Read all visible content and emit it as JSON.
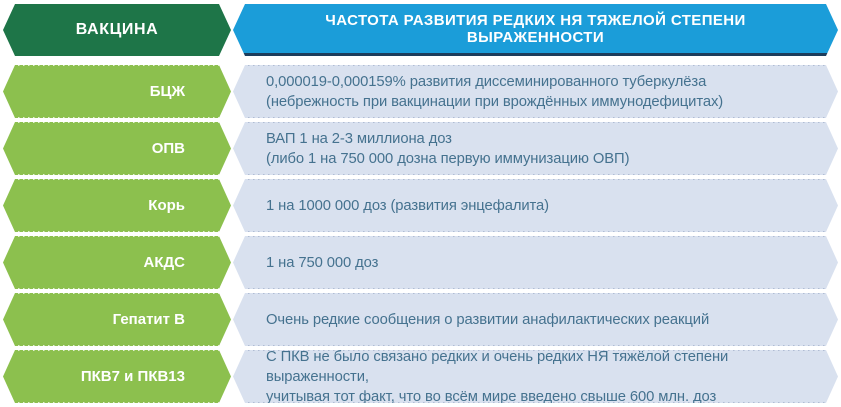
{
  "header": {
    "vaccine_col": "ВАКЦИНА",
    "frequency_col": "ЧАСТОТА РАЗВИТИЯ РЕДКИХ НЯ ТЯЖЕЛОЙ СТЕПЕНИ ВЫРАЖЕННОСТИ"
  },
  "rows": [
    {
      "vaccine": "БЦЖ",
      "line1": "0,000019-0,000159% развития диссеминированного туберкулёза",
      "line2": "(небрежность при вакцинации при врождённых иммунодефицитах)"
    },
    {
      "vaccine": "ОПВ",
      "line1": "ВАП 1 на 2-3 миллиона доз",
      "line2": "(либо 1 на 750 000 дозна первую иммунизацию ОВП)"
    },
    {
      "vaccine": "Корь",
      "line1": "1 на 1000 000 доз (развития энцефалита)",
      "line2": ""
    },
    {
      "vaccine": "АКДС",
      "line1": "1 на 750 000 доз",
      "line2": ""
    },
    {
      "vaccine": "Гепатит В",
      "line1": "Очень редкие сообщения о развитии анафилактических реакций",
      "line2": ""
    },
    {
      "vaccine": "ПКВ7 и ПКВ13",
      "line1": "С ПКВ не было связано редких и очень редких НЯ тяжёлой степени выраженности,",
      "line2": "учитывая тот факт,  что во всём мире введено свыше 600 млн. доз"
    }
  ],
  "colors": {
    "header_green": "#1e7548",
    "header_blue": "#1b9dd9",
    "header_blue_shadow": "#1d3d5c",
    "row_green": "#8cc04e",
    "row_blue_bg": "#d9e1ef",
    "row_text": "#45728f",
    "header_text": "#ffffff"
  },
  "chart_data": {
    "type": "table",
    "title": "Частота развития редких НЯ тяжелой степени выраженности по вакцинам",
    "columns": [
      "ВАКЦИНА",
      "ЧАСТОТА РАЗВИТИЯ РЕДКИХ НЯ ТЯЖЕЛОЙ СТЕПЕНИ ВЫРАЖЕННОСТИ"
    ],
    "rows": [
      [
        "БЦЖ",
        "0,000019-0,000159% развития диссеминированного туберкулёза (небрежность при вакцинации при врождённых иммунодефицитах)"
      ],
      [
        "ОПВ",
        "ВАП 1 на 2-3 миллиона доз (либо 1 на 750 000 дозна первую иммунизацию ОВП)"
      ],
      [
        "Корь",
        "1 на 1000 000 доз (развития энцефалита)"
      ],
      [
        "АКДС",
        "1 на 750 000 доз"
      ],
      [
        "Гепатит В",
        "Очень редкие сообщения о развитии анафилактических реакций"
      ],
      [
        "ПКВ7 и ПКВ13",
        "С ПКВ не было связано редких и очень редких НЯ тяжёлой степени выраженности, учитывая тот факт, что во всём мире введено свыше 600 млн. доз"
      ]
    ]
  }
}
